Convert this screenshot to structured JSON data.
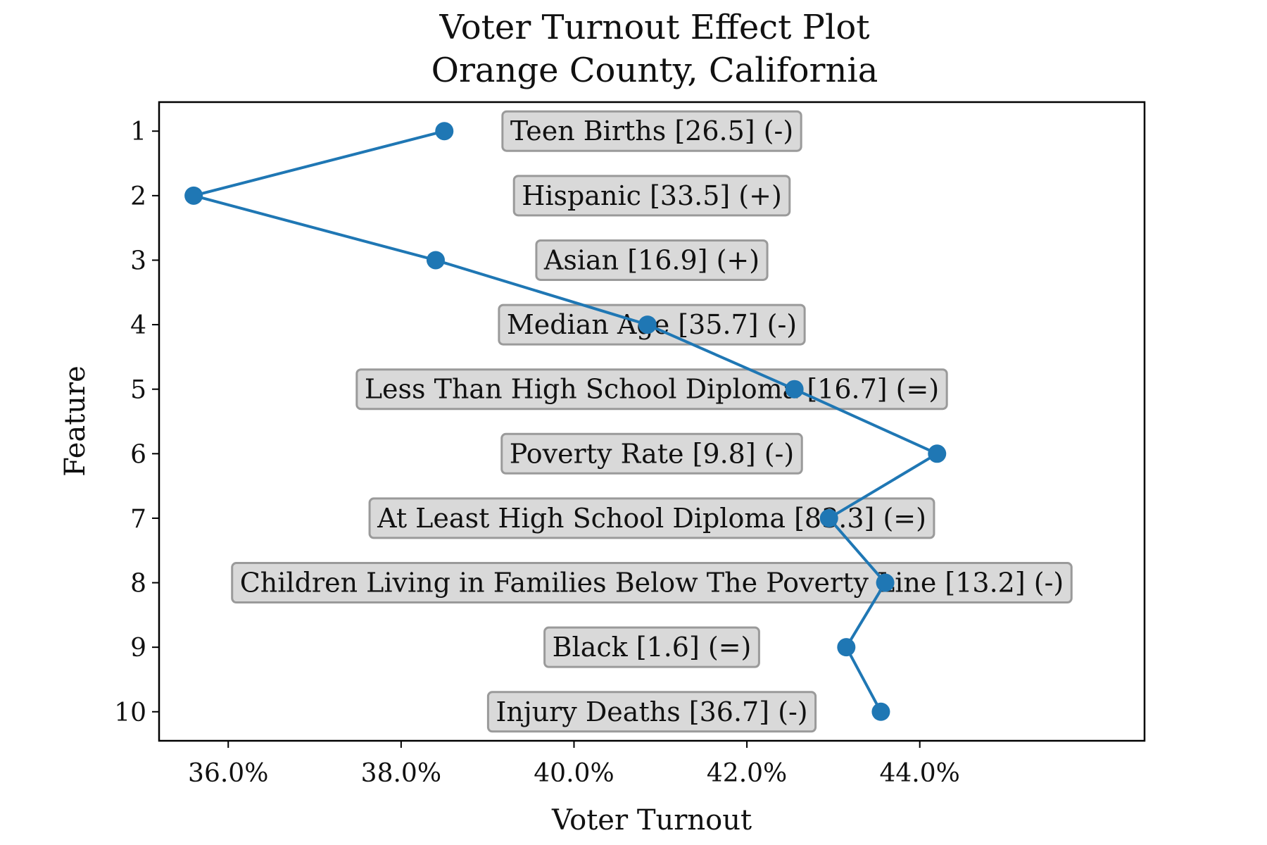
{
  "chart_data": {
    "type": "line",
    "title": "Voter Turnout Effect Plot",
    "subtitle": "Orange County, California",
    "xlabel": "Voter Turnout",
    "ylabel": "Feature",
    "xlim": [
      35.2,
      46.6
    ],
    "ylim": [
      10.45,
      0.55
    ],
    "x_ticks": [
      36,
      38,
      40,
      42,
      44
    ],
    "x_tick_labels": [
      "36.0%",
      "38.0%",
      "40.0%",
      "42.0%",
      "44.0%"
    ],
    "y_ticks": [
      1,
      2,
      3,
      4,
      5,
      6,
      7,
      8,
      9,
      10
    ],
    "y_tick_labels": [
      "1",
      "2",
      "3",
      "4",
      "5",
      "6",
      "7",
      "8",
      "9",
      "10"
    ],
    "grid": false,
    "color": "#1f77b4",
    "series": [
      {
        "x": [
          38.5,
          35.6,
          38.4,
          40.85,
          42.55,
          44.2,
          42.95,
          43.6,
          43.15,
          43.55
        ],
        "y": [
          1,
          2,
          3,
          4,
          5,
          6,
          7,
          8,
          9,
          10
        ]
      }
    ],
    "annotations": [
      "Teen Births [26.5] (-)",
      "Hispanic [33.5] (+)",
      "Asian [16.9] (+)",
      "Median Age [35.7] (-)",
      "Less Than High School Diploma [16.7] (=)",
      "Poverty Rate [9.8] (-)",
      "At Least High School Diploma [83.3] (=)",
      "Children Living in Families Below The Poverty Line [13.2] (-)",
      "Black [1.6] (=)",
      "Injury Deaths [36.7] (-)"
    ]
  }
}
